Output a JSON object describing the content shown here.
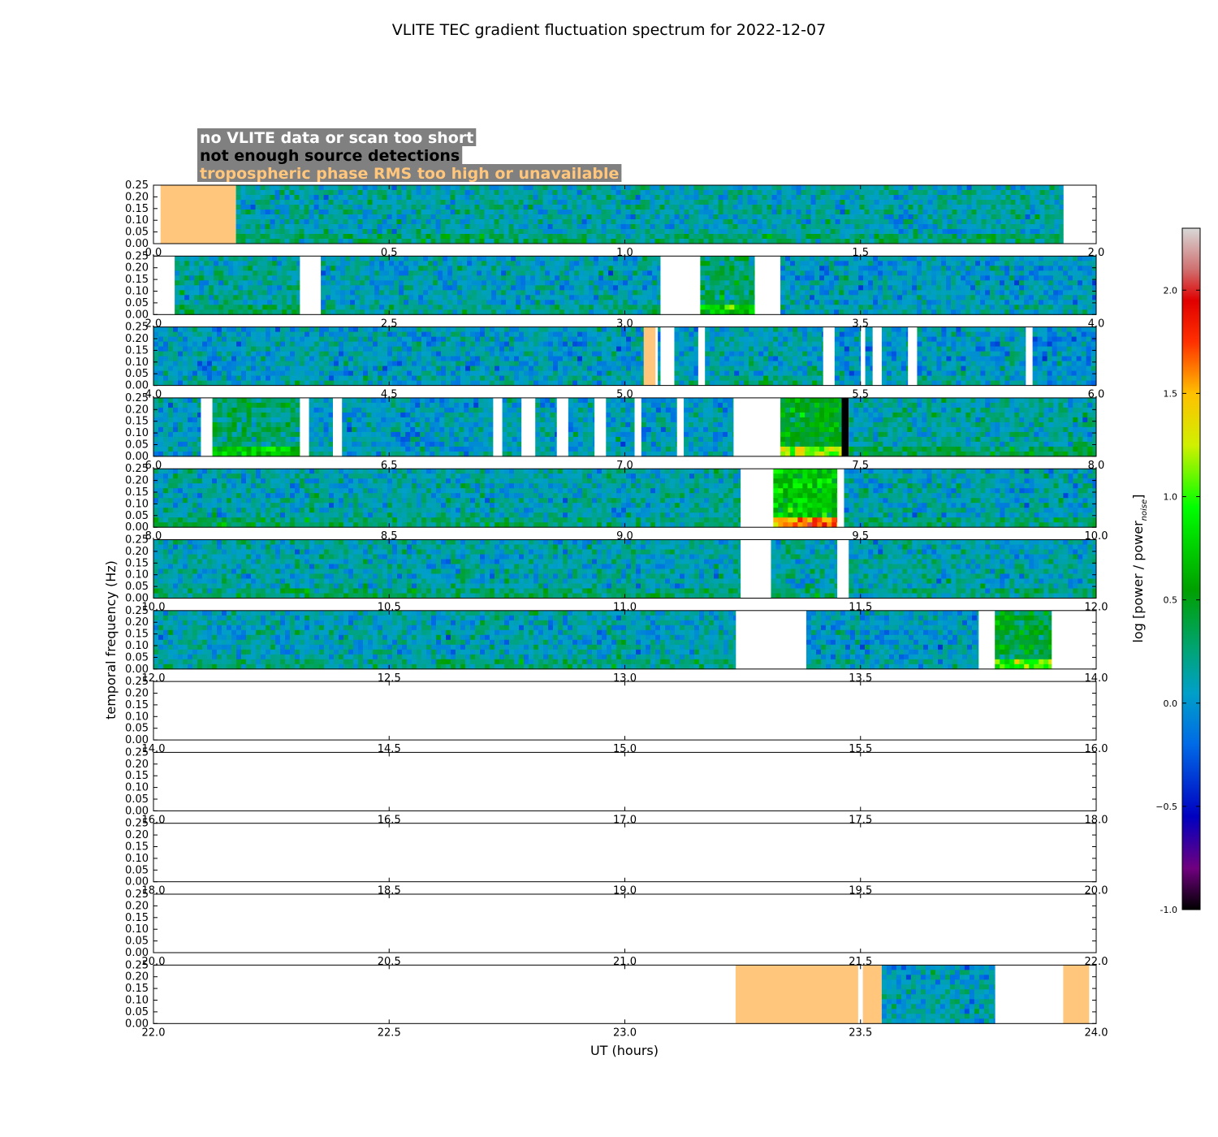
{
  "chart_data": {
    "type": "heatmap",
    "title": "VLITE TEC gradient fluctuation spectrum for 2022-12-07",
    "xlabel": "UT (hours)",
    "ylabel": "temporal frequency (Hz)",
    "ylim": [
      0,
      0.25
    ],
    "y_ticks": [
      "0.00",
      "0.05",
      "0.10",
      "0.15",
      "0.20",
      "0.25"
    ],
    "hours_per_row": 2,
    "legend": [
      {
        "label": "no VLITE data or scan too short",
        "text_color": "#ffffff"
      },
      {
        "label": "not enough source detections",
        "text_color": "#000000"
      },
      {
        "label": "tropospheric phase RMS too high or unavailable",
        "text_color": "#ffc67c"
      }
    ],
    "legend_background": "#808080",
    "flag_color_troposphere": "#ffc67c",
    "flag_color_detections": "#000000",
    "colorbar": {
      "label": "log [power / power",
      "label_subscript": "noise",
      "label_close": "]",
      "min": -1.0,
      "max": 2.3,
      "ticks": [
        "-1.0",
        "−0.5",
        "0.0",
        "0.5",
        "1.0",
        "1.5",
        "2.0"
      ],
      "tick_values": [
        -1.0,
        -0.5,
        0.0,
        0.5,
        1.0,
        1.5,
        2.0
      ],
      "stops": [
        {
          "v": -1.0,
          "c": "#000000"
        },
        {
          "v": -0.8,
          "c": "#70007f"
        },
        {
          "v": -0.55,
          "c": "#0000c0"
        },
        {
          "v": -0.2,
          "c": "#006ae6"
        },
        {
          "v": 0.05,
          "c": "#00a0c8"
        },
        {
          "v": 0.25,
          "c": "#00a478"
        },
        {
          "v": 0.55,
          "c": "#00a000"
        },
        {
          "v": 0.95,
          "c": "#00ff00"
        },
        {
          "v": 1.25,
          "c": "#d0f000"
        },
        {
          "v": 1.5,
          "c": "#ffc000"
        },
        {
          "v": 1.75,
          "c": "#ff3000"
        },
        {
          "v": 1.95,
          "c": "#e00000"
        },
        {
          "v": 2.1,
          "c": "#d07070"
        },
        {
          "v": 2.3,
          "c": "#d8d8d8"
        }
      ]
    },
    "rows": [
      {
        "start": 0,
        "ticks": [
          "0.0",
          "0.5",
          "1.0",
          "1.5",
          "2.0"
        ],
        "segments": [
          {
            "type": "flag_troposphere",
            "from": 0.015,
            "to": 0.175
          },
          {
            "type": "data",
            "from": 0.175,
            "to": 1.93,
            "level": 0.12
          }
        ]
      },
      {
        "start": 2,
        "ticks": [
          "2.0",
          "2.5",
          "3.0",
          "3.5",
          "4.0"
        ],
        "segments": [
          {
            "type": "data",
            "from": 2.045,
            "to": 2.31,
            "level": 0.15
          },
          {
            "type": "data",
            "from": 2.355,
            "to": 3.075,
            "level": 0.08
          },
          {
            "type": "data",
            "from": 3.16,
            "to": 3.275,
            "level": 0.3
          },
          {
            "type": "data",
            "from": 3.33,
            "to": 4.0,
            "level": 0.05
          }
        ]
      },
      {
        "start": 4,
        "ticks": [
          "4.0",
          "4.5",
          "5.0",
          "5.5",
          "6.0"
        ],
        "segments": [
          {
            "type": "data",
            "from": 4.0,
            "to": 5.04,
            "level": 0.05
          },
          {
            "type": "flag_troposphere",
            "from": 5.04,
            "to": 5.065
          },
          {
            "type": "data",
            "from": 5.07,
            "to": 5.075,
            "level": 0.05
          },
          {
            "type": "data",
            "from": 5.105,
            "to": 5.155,
            "level": 0.05
          },
          {
            "type": "data",
            "from": 5.17,
            "to": 5.42,
            "level": 0.1
          },
          {
            "type": "data",
            "from": 5.445,
            "to": 5.5,
            "level": 0.0
          },
          {
            "type": "data",
            "from": 5.51,
            "to": 5.525,
            "level": 0.0
          },
          {
            "type": "data",
            "from": 5.545,
            "to": 5.6,
            "level": 0.02
          },
          {
            "type": "data",
            "from": 5.62,
            "to": 5.85,
            "level": 0.05
          },
          {
            "type": "data",
            "from": 5.865,
            "to": 6.0,
            "level": 0.0
          }
        ]
      },
      {
        "start": 6,
        "ticks": [
          "6.0",
          "6.5",
          "7.0",
          "7.5",
          "8.0"
        ],
        "segments": [
          {
            "type": "data",
            "from": 6.0,
            "to": 6.1,
            "level": 0.05
          },
          {
            "type": "data",
            "from": 6.125,
            "to": 6.31,
            "level": 0.3
          },
          {
            "type": "data",
            "from": 6.33,
            "to": 6.38,
            "level": 0.05
          },
          {
            "type": "data",
            "from": 6.4,
            "to": 6.72,
            "level": 0.05
          },
          {
            "type": "data",
            "from": 6.74,
            "to": 6.78,
            "level": 0.05
          },
          {
            "type": "data",
            "from": 6.81,
            "to": 6.855,
            "level": 0.05
          },
          {
            "type": "data",
            "from": 6.88,
            "to": 6.935,
            "level": 0.05
          },
          {
            "type": "data",
            "from": 6.96,
            "to": 7.02,
            "level": 0.05
          },
          {
            "type": "data",
            "from": 7.035,
            "to": 7.11,
            "level": 0.05
          },
          {
            "type": "data",
            "from": 7.125,
            "to": 7.23,
            "level": 0.05
          },
          {
            "type": "data",
            "from": 7.33,
            "to": 7.46,
            "level": 0.5
          },
          {
            "type": "flag_detections",
            "from": 7.46,
            "to": 7.475
          },
          {
            "type": "data",
            "from": 7.475,
            "to": 8.0,
            "level": 0.15
          }
        ]
      },
      {
        "start": 8,
        "ticks": [
          "8.0",
          "8.5",
          "9.0",
          "9.5",
          "10.0"
        ],
        "segments": [
          {
            "type": "data",
            "from": 8.0,
            "to": 9.245,
            "level": 0.12
          },
          {
            "type": "data",
            "from": 9.315,
            "to": 9.45,
            "level": 0.7
          },
          {
            "type": "data",
            "from": 9.465,
            "to": 10.0,
            "level": 0.1
          }
        ]
      },
      {
        "start": 10,
        "ticks": [
          "10.0",
          "10.5",
          "11.0",
          "11.5",
          "12.0"
        ],
        "segments": [
          {
            "type": "data",
            "from": 10.0,
            "to": 11.245,
            "level": 0.12
          },
          {
            "type": "data",
            "from": 11.31,
            "to": 11.45,
            "level": 0.15
          },
          {
            "type": "data",
            "from": 11.475,
            "to": 12.0,
            "level": 0.1
          }
        ]
      },
      {
        "start": 12,
        "ticks": [
          "12.0",
          "12.5",
          "13.0",
          "13.5",
          "14.0"
        ],
        "segments": [
          {
            "type": "data",
            "from": 12.0,
            "to": 13.235,
            "level": 0.1
          },
          {
            "type": "data",
            "from": 13.385,
            "to": 13.75,
            "level": 0.05
          },
          {
            "type": "data",
            "from": 13.785,
            "to": 13.905,
            "level": 0.45
          }
        ]
      },
      {
        "start": 14,
        "ticks": [
          "14.0",
          "14.5",
          "15.0",
          "15.5",
          "16.0"
        ],
        "segments": []
      },
      {
        "start": 16,
        "ticks": [
          "16.0",
          "16.5",
          "17.0",
          "17.5",
          "18.0"
        ],
        "segments": []
      },
      {
        "start": 18,
        "ticks": [
          "18.0",
          "18.5",
          "19.0",
          "19.5",
          "20.0"
        ],
        "segments": []
      },
      {
        "start": 20,
        "ticks": [
          "20.0",
          "20.5",
          "21.0",
          "21.5",
          "22.0"
        ],
        "segments": []
      },
      {
        "start": 22,
        "ticks": [
          "22.0",
          "22.5",
          "23.0",
          "23.5",
          "24.0"
        ],
        "segments": [
          {
            "type": "flag_troposphere",
            "from": 23.235,
            "to": 23.495
          },
          {
            "type": "flag_troposphere",
            "from": 23.505,
            "to": 23.545
          },
          {
            "type": "data",
            "from": 23.545,
            "to": 23.785,
            "level": 0.05
          },
          {
            "type": "flag_troposphere",
            "from": 23.93,
            "to": 23.985
          }
        ]
      }
    ]
  }
}
